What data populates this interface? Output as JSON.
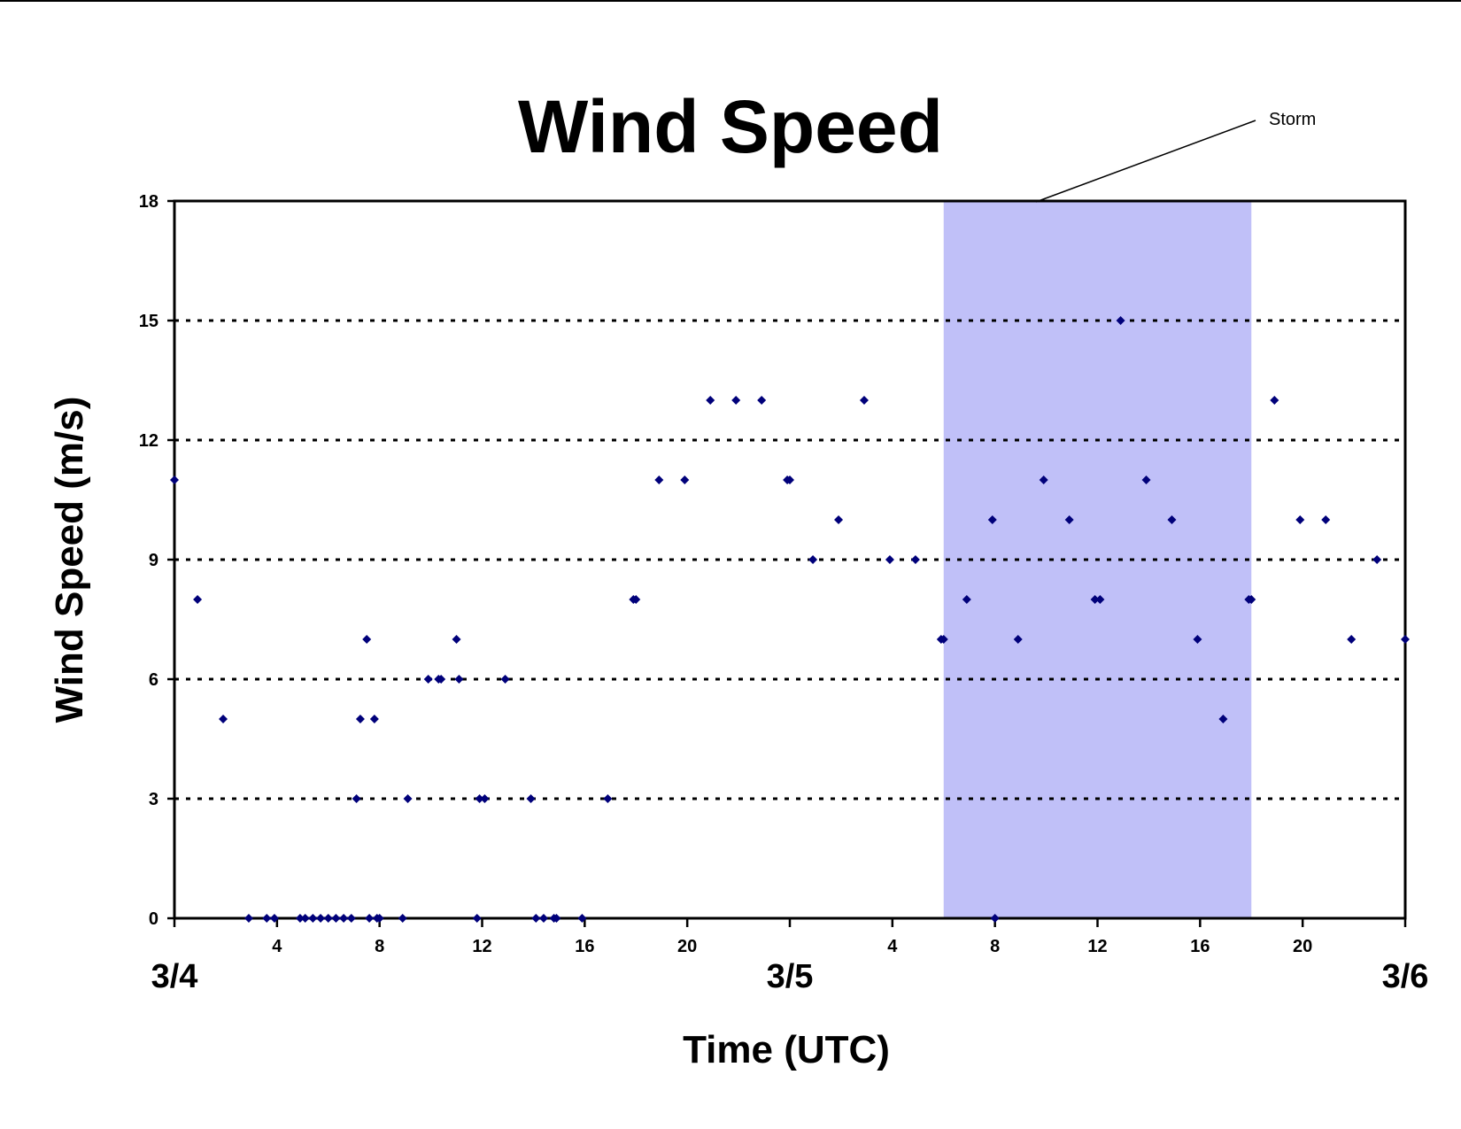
{
  "chart_data": {
    "type": "scatter",
    "title": "Wind Speed",
    "xlabel": "Time (UTC)",
    "ylabel": "Wind Speed (m/s)",
    "ylim": [
      0,
      18
    ],
    "yticks": [
      0,
      3,
      6,
      9,
      12,
      15,
      18
    ],
    "xlim_hours": [
      0,
      48
    ],
    "hour_ticks": [
      {
        "hour": 4,
        "label": "4"
      },
      {
        "hour": 8,
        "label": "8"
      },
      {
        "hour": 12,
        "label": "12"
      },
      {
        "hour": 16,
        "label": "16"
      },
      {
        "hour": 20,
        "label": "20"
      },
      {
        "hour": 28,
        "label": "4"
      },
      {
        "hour": 32,
        "label": "8"
      },
      {
        "hour": 36,
        "label": "12"
      },
      {
        "hour": 40,
        "label": "16"
      },
      {
        "hour": 44,
        "label": "20"
      }
    ],
    "date_labels": [
      {
        "hour": 0,
        "label": "3/4"
      },
      {
        "hour": 24,
        "label": "3/5"
      },
      {
        "hour": 48,
        "label": "3/6"
      }
    ],
    "grid": "horizontal dotted at 3, 6, 9, 12, 15",
    "shaded_region": {
      "label": "Storm",
      "start_hour": 30,
      "end_hour": 42,
      "color": "#c0c0f8"
    },
    "marker_color": "#00007a",
    "x": [
      0,
      0.9,
      1.9,
      2.9,
      3.6,
      3.9,
      4.9,
      5.1,
      5.4,
      5.7,
      6.0,
      6.3,
      6.6,
      6.9,
      7.1,
      7.25,
      7.5,
      7.6,
      7.8,
      7.9,
      8.0,
      8.9,
      9.1,
      9.9,
      10.3,
      10.4,
      11.0,
      11.1,
      11.8,
      11.9,
      12.1,
      12.9,
      13.9,
      14.1,
      14.4,
      14.8,
      14.9,
      15.9,
      16.9,
      17.9,
      18.0,
      18.9,
      19.9,
      20.9,
      21.9,
      22.9,
      23.9,
      24.0,
      24.9,
      25.9,
      26.9,
      27.9,
      28.9,
      29.9,
      30.0,
      30.9,
      31.9,
      32.0,
      32.9,
      33.9,
      34.9,
      35.9,
      36.1,
      36.9,
      37.9,
      38.9,
      39.9,
      40.9,
      41.9,
      42.0,
      42.9,
      43.9,
      44.9,
      45.9,
      46.9,
      48.0
    ],
    "y": [
      11,
      8,
      5,
      0,
      0,
      0,
      0,
      0,
      0,
      0,
      0,
      0,
      0,
      0,
      3,
      5,
      7,
      0,
      5,
      0,
      0,
      0,
      3,
      6,
      6,
      6,
      7,
      6,
      0,
      3,
      3,
      6,
      3,
      0,
      0,
      0,
      0,
      0,
      3,
      8,
      8,
      11,
      11,
      13,
      13,
      13,
      11,
      11,
      9,
      10,
      13,
      9,
      9,
      7,
      7,
      8,
      10,
      0,
      7,
      11,
      10,
      8,
      8,
      15,
      11,
      10,
      7,
      5,
      8,
      8,
      13,
      10,
      10,
      7,
      9,
      7
    ]
  }
}
